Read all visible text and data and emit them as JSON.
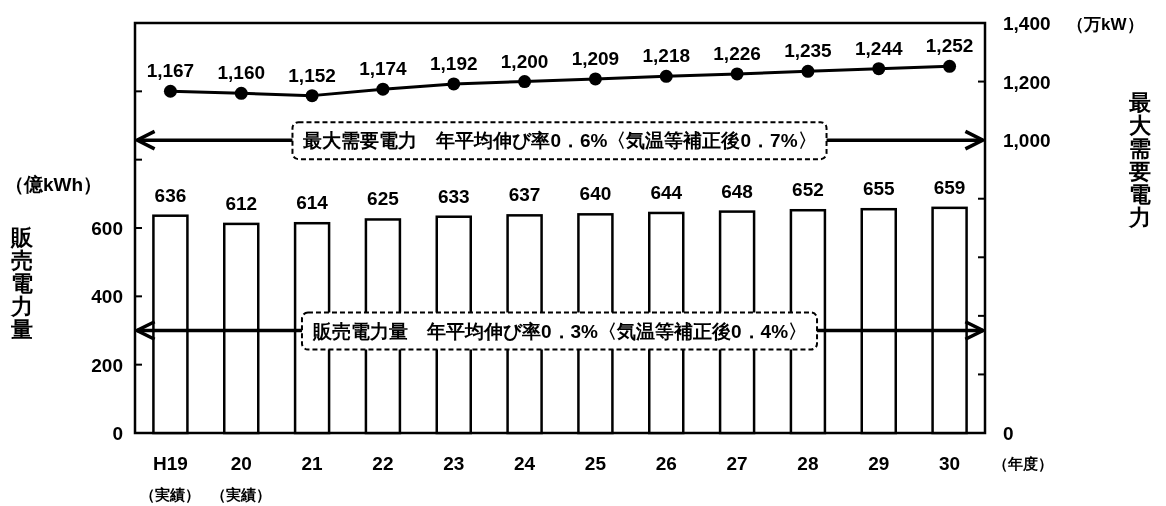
{
  "chart_data": {
    "type": "bar",
    "categories": [
      "H19",
      "20",
      "21",
      "22",
      "23",
      "24",
      "25",
      "26",
      "27",
      "28",
      "29",
      "30"
    ],
    "series": [
      {
        "color": "#ffffff",
        "values": [
          636,
          612,
          614,
          625,
          633,
          637,
          640,
          644,
          648,
          652,
          655,
          659
        ]
      },
      {
        "type": "line",
        "axis": "y2",
        "color": "#000000",
        "marker": "circle",
        "values": [
          1167,
          1160,
          1152,
          1174,
          1192,
          1200,
          1209,
          1218,
          1226,
          1235,
          1244,
          1252
        ],
        "value_labels": [
          "1,167",
          "1,160",
          "1,152",
          "1,174",
          "1,192",
          "1,200",
          "1,209",
          "1,218",
          "1,226",
          "1,235",
          "1,244",
          "1,252"
        ]
      }
    ],
    "data_labels": true,
    "xlabel": "（年度）",
    "ylabel": "販売電力量",
    "y2label": "最大需要電力",
    "ylim": [
      0,
      1200
    ],
    "yticks": [
      0,
      200,
      400,
      600,
      {
        "value": 800,
        "label": null
      },
      {
        "value": 1000,
        "label": null
      }
    ],
    "y2lim": [
      0,
      1400
    ],
    "y2ticks": [
      0,
      {
        "value": 200,
        "label": null
      },
      {
        "value": 400,
        "label": null
      },
      {
        "value": 600,
        "label": null
      },
      {
        "value": 800,
        "label": null
      },
      {
        "value": 1000,
        "label": "1,000"
      },
      {
        "value": 1200,
        "label": "1,200"
      },
      {
        "value": 1400,
        "label": "1,400"
      }
    ],
    "ref_lines": [
      {
        "axis": "y2",
        "value": 1000,
        "label": "最大需要電力　年平均伸び率0．6%〈気温等補正後0．7%〉"
      },
      {
        "axis": "y",
        "value": 300,
        "label": "販売電力量　年平均伸び率0．3%〈気温等補正後0．4%〉"
      }
    ],
    "annotations": [
      "（億kWh）",
      "（万kW）",
      "（実績）",
      "（実績）"
    ]
  }
}
